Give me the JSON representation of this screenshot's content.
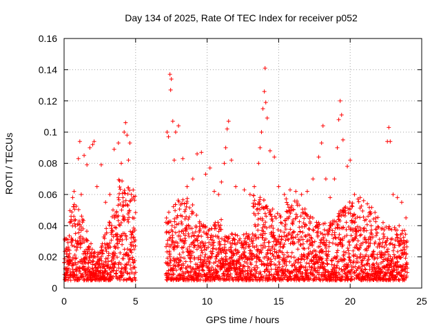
{
  "chart_data": {
    "type": "scatter",
    "title": "Day 134 of 2025, Rate Of TEC Index for receiver p052",
    "xlabel": "GPS time / hours",
    "ylabel": "ROTI / TECUs",
    "xlim": [
      0,
      25
    ],
    "ylim": [
      0,
      0.16
    ],
    "x_ticks": [
      "0",
      "5",
      "10",
      "15",
      "20",
      "25"
    ],
    "y_ticks": [
      "0",
      "0.02",
      "0.04",
      "0.06",
      "0.08",
      "0.1",
      "0.12",
      "0.14",
      "0.16"
    ],
    "grid": true,
    "legend": "none",
    "marker": "+",
    "color": "#ff0000",
    "data_gap_hours": [
      5.0,
      7.1
    ],
    "series": [
      {
        "points": [
          [
            0.1,
            0.012
          ],
          [
            0.2,
            0.008
          ],
          [
            0.3,
            0.025
          ],
          [
            0.4,
            0.042
          ],
          [
            0.5,
            0.03
          ],
          [
            0.6,
            0.058
          ],
          [
            0.7,
            0.062
          ],
          [
            0.8,
            0.035
          ],
          [
            1.0,
            0.083
          ],
          [
            1.1,
            0.094
          ],
          [
            1.2,
            0.06
          ],
          [
            1.4,
            0.085
          ],
          [
            1.6,
            0.079
          ],
          [
            1.8,
            0.09
          ],
          [
            2.0,
            0.092
          ],
          [
            2.1,
            0.094
          ],
          [
            2.3,
            0.065
          ],
          [
            2.6,
            0.079
          ],
          [
            2.9,
            0.055
          ],
          [
            3.2,
            0.06
          ],
          [
            3.5,
            0.089
          ],
          [
            3.8,
            0.093
          ],
          [
            4.0,
            0.08
          ],
          [
            4.2,
            0.1
          ],
          [
            4.3,
            0.106
          ],
          [
            4.4,
            0.098
          ],
          [
            4.5,
            0.082
          ],
          [
            4.6,
            0.093
          ],
          [
            4.7,
            0.06
          ],
          [
            4.8,
            0.045
          ],
          [
            7.2,
            0.1
          ],
          [
            7.3,
            0.097
          ],
          [
            7.4,
            0.137
          ],
          [
            7.5,
            0.134
          ],
          [
            7.45,
            0.127
          ],
          [
            7.6,
            0.107
          ],
          [
            7.7,
            0.082
          ],
          [
            7.8,
            0.1
          ],
          [
            8.0,
            0.104
          ],
          [
            8.3,
            0.083
          ],
          [
            8.6,
            0.065
          ],
          [
            9.0,
            0.07
          ],
          [
            9.3,
            0.086
          ],
          [
            9.6,
            0.087
          ],
          [
            9.9,
            0.073
          ],
          [
            10.2,
            0.077
          ],
          [
            10.5,
            0.062
          ],
          [
            10.8,
            0.06
          ],
          [
            11.0,
            0.068
          ],
          [
            11.2,
            0.08
          ],
          [
            11.3,
            0.09
          ],
          [
            11.4,
            0.102
          ],
          [
            11.5,
            0.107
          ],
          [
            11.7,
            0.082
          ],
          [
            12.0,
            0.065
          ],
          [
            12.6,
            0.063
          ],
          [
            13.0,
            0.06
          ],
          [
            13.3,
            0.065
          ],
          [
            13.6,
            0.08
          ],
          [
            13.7,
            0.09
          ],
          [
            13.8,
            0.1
          ],
          [
            13.9,
            0.115
          ],
          [
            14.0,
            0.126
          ],
          [
            14.05,
            0.141
          ],
          [
            14.1,
            0.119
          ],
          [
            14.2,
            0.109
          ],
          [
            14.4,
            0.088
          ],
          [
            14.7,
            0.084
          ],
          [
            15.0,
            0.065
          ],
          [
            15.4,
            0.06
          ],
          [
            15.8,
            0.063
          ],
          [
            16.2,
            0.062
          ],
          [
            16.6,
            0.06
          ],
          [
            17.0,
            0.062
          ],
          [
            17.4,
            0.07
          ],
          [
            17.8,
            0.084
          ],
          [
            18.0,
            0.093
          ],
          [
            18.1,
            0.104
          ],
          [
            18.3,
            0.07
          ],
          [
            18.6,
            0.058
          ],
          [
            18.9,
            0.07
          ],
          [
            19.1,
            0.09
          ],
          [
            19.2,
            0.108
          ],
          [
            19.3,
            0.12
          ],
          [
            19.4,
            0.111
          ],
          [
            19.5,
            0.095
          ],
          [
            19.8,
            0.078
          ],
          [
            20.0,
            0.082
          ],
          [
            20.3,
            0.06
          ],
          [
            20.7,
            0.058
          ],
          [
            21.2,
            0.054
          ],
          [
            21.8,
            0.045
          ],
          [
            22.3,
            0.042
          ],
          [
            22.6,
            0.094
          ],
          [
            22.7,
            0.103
          ],
          [
            22.8,
            0.094
          ],
          [
            23.0,
            0.06
          ],
          [
            23.3,
            0.058
          ],
          [
            23.6,
            0.055
          ],
          [
            23.9,
            0.045
          ]
        ]
      }
    ]
  }
}
